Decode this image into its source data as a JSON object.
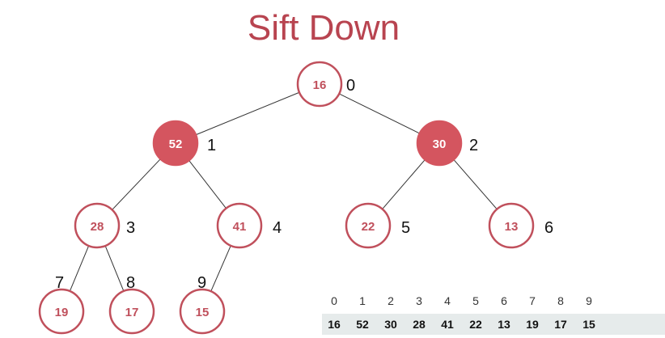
{
  "title": "Sift Down",
  "colors": {
    "title": "#b84450",
    "node_stroke": "#c0505c",
    "node_text": "#c0505c",
    "highlight_fill": "#d4555f",
    "highlight_text": "#ffffff",
    "edge": "#333333",
    "array_bg": "#e6ebeb"
  },
  "tree": {
    "nodes": [
      {
        "index": "0",
        "value": "16",
        "highlighted": false
      },
      {
        "index": "1",
        "value": "52",
        "highlighted": true
      },
      {
        "index": "2",
        "value": "30",
        "highlighted": true
      },
      {
        "index": "3",
        "value": "28",
        "highlighted": false
      },
      {
        "index": "4",
        "value": "41",
        "highlighted": false
      },
      {
        "index": "5",
        "value": "22",
        "highlighted": false
      },
      {
        "index": "6",
        "value": "13",
        "highlighted": false
      },
      {
        "index": "7",
        "value": "19",
        "highlighted": false
      },
      {
        "index": "8",
        "value": "17",
        "highlighted": false
      },
      {
        "index": "9",
        "value": "15",
        "highlighted": false
      }
    ]
  },
  "array": {
    "indices": [
      "0",
      "1",
      "2",
      "3",
      "4",
      "5",
      "6",
      "7",
      "8",
      "9"
    ],
    "values": [
      "16",
      "52",
      "30",
      "28",
      "41",
      "22",
      "13",
      "19",
      "17",
      "15"
    ]
  }
}
